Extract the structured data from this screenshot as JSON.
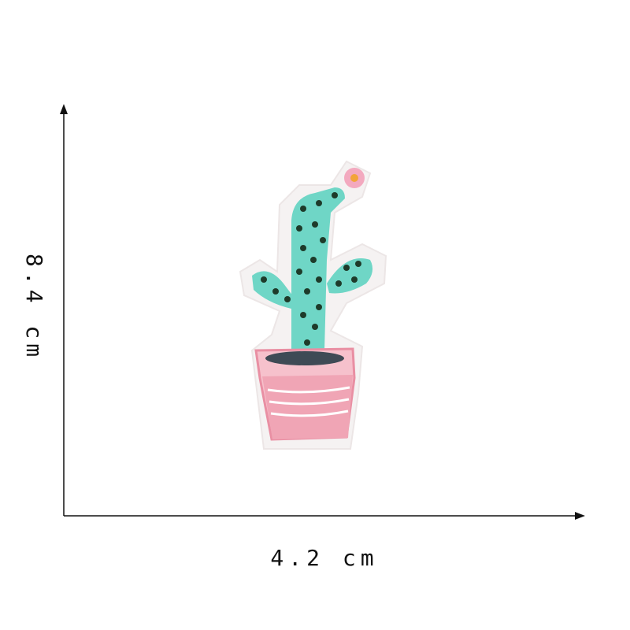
{
  "dimensions": {
    "height": "8.4 cm",
    "width": "4.2 cm"
  }
}
